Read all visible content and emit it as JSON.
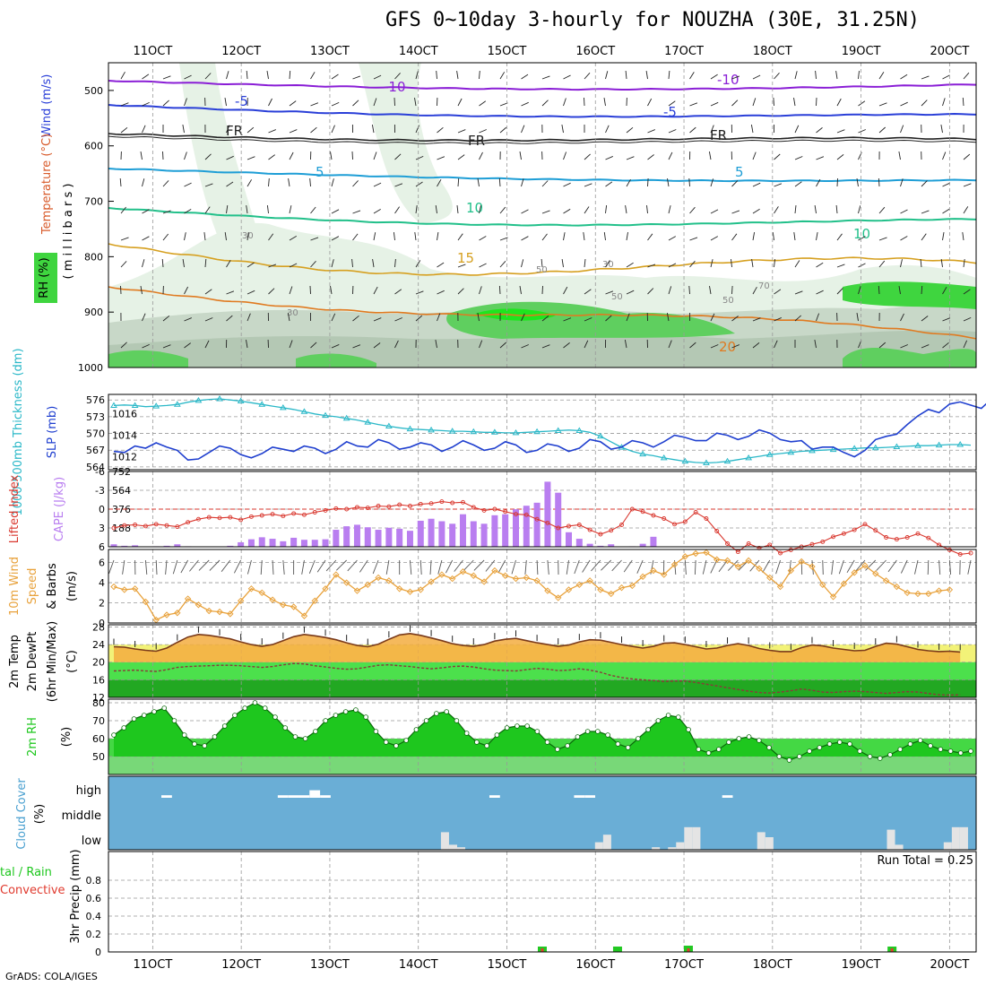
{
  "title": "GFS 0~10day 3-hourly for NOUZHA (30E, 31.25N)",
  "footer": "GrADS: COLA/IGES",
  "run_total": "Run Total = 0.25",
  "x_ticks": [
    "11OCT",
    "12OCT",
    "13OCT",
    "14OCT",
    "15OCT",
    "16OCT",
    "17OCT",
    "18OCT",
    "19OCT",
    "20OCT"
  ],
  "x_ticks_bottom": [
    "11OCT",
    "12OCT",
    "13OCT",
    "14OCT",
    "15OCT",
    "16OCT",
    "17OCT",
    "18OCT",
    "19OCT",
    "20OCT"
  ],
  "colors": {
    "background": "#ffffff",
    "cloud_bg": "#6aaed6",
    "cape": "#b97ef0",
    "lifted": "#d9372e",
    "slp": "#1f3fcf",
    "thickness": "#2bb8c8",
    "wind_speed": "#e8a23c",
    "temp_fill": "#f3ad3f",
    "rh_fill": "#1ec71e",
    "rain": "#22c822",
    "convective": "#e03a2e"
  },
  "panels": {
    "upper": {
      "ylabel_wind": "Wind (m/s)",
      "ylabel_temp": "Temperature (°C)",
      "ylabel_rh": "RH (%)",
      "ylabel_pressure": "( m i l l i b a r s )",
      "y_ticks": [
        "500",
        "600",
        "700",
        "800",
        "900",
        "1000"
      ],
      "contour_labels": [
        "-10",
        "-10",
        "-5",
        "-5",
        "FR",
        "FR",
        "FR",
        "5",
        "5",
        "10",
        "10",
        "15",
        "20",
        "30",
        "30",
        "50",
        "50",
        "50",
        "70",
        "30"
      ]
    },
    "slp": {
      "ylabel_thickness": "1000-500mb Thickness (dm)",
      "ylabel_slp": "SLP (mb)",
      "left_ticks": [
        "576",
        "573",
        "570",
        "567",
        "564"
      ],
      "right_ticks": [
        "1016",
        "1014",
        "1012"
      ]
    },
    "cape": {
      "ylabel_li": "Lifted Index",
      "ylabel_cape": "CAPE (J/kg)",
      "left_ticks": [
        "-6",
        "-3",
        "0",
        "3",
        "6"
      ],
      "right_ticks": [
        "752",
        "564",
        "376",
        "188"
      ]
    },
    "wind": {
      "ylabel_a": "10m Wind",
      "ylabel_b": "Speed",
      "ylabel_c": "& Barbs",
      "ylabel_unit": "(m/s)",
      "y_ticks": [
        "6",
        "4",
        "2",
        "0"
      ]
    },
    "temp": {
      "ylabel_a": "2m Temp",
      "ylabel_b": "2m DewPt",
      "ylabel_c": "(6hr Min/Max)",
      "ylabel_unit": "(°C)",
      "y_ticks": [
        "28",
        "24",
        "20",
        "16",
        "12"
      ]
    },
    "rh": {
      "ylabel": "2m RH",
      "ylabel_unit": "(%)",
      "y_ticks": [
        "80",
        "70",
        "60",
        "50"
      ]
    },
    "cloud": {
      "ylabel": "Cloud Cover",
      "ylabel_unit": "(%)",
      "levels": [
        "high",
        "middle",
        "low"
      ]
    },
    "precip": {
      "ylabel_a": "tal / Rain",
      "ylabel_b": "Convective",
      "ylabel_c": "3hr Precip (mm)",
      "y_ticks": [
        "0.8",
        "0.6",
        "0.4",
        "0.2",
        "0"
      ]
    }
  },
  "chart_data": [
    {
      "type": "line",
      "title": "1000-500mb Thickness / SLP",
      "series": [
        {
          "name": "1000-500mb Thickness (dm)",
          "y": [
            575.0,
            575.1,
            575.0,
            574.8,
            574.9,
            575.0,
            575.2,
            575.6,
            575.9,
            576.1,
            576.2,
            576.0,
            575.8,
            575.5,
            575.2,
            574.9,
            574.6,
            574.3,
            573.9,
            573.5,
            573.2,
            573.0,
            572.7,
            572.4,
            572.0,
            571.6,
            571.3,
            571.0,
            570.8,
            570.7,
            570.6,
            570.5,
            570.4,
            570.4,
            570.3,
            570.2,
            570.2,
            570.1,
            570.1,
            570.2,
            570.3,
            570.4,
            570.5,
            570.6,
            570.5,
            570.2,
            569.5,
            568.5,
            567.5,
            566.8,
            566.3,
            566.0,
            565.6,
            565.3,
            565.0,
            564.8,
            564.7,
            564.8,
            565.0,
            565.3,
            565.6,
            565.9,
            566.2,
            566.4,
            566.6,
            566.8,
            566.9,
            567.0,
            567.1,
            567.2,
            567.3,
            567.4,
            567.4,
            567.5,
            567.6,
            567.7,
            567.8,
            567.8,
            567.9,
            568.0,
            568.0,
            567.9
          ]
        },
        {
          "name": "SLP (mb)",
          "y": [
            1012.5,
            1012.4,
            1013.0,
            1012.8,
            1013.3,
            1012.9,
            1012.6,
            1011.7,
            1011.8,
            1012.4,
            1013.0,
            1012.8,
            1012.2,
            1011.9,
            1012.3,
            1012.9,
            1012.7,
            1012.5,
            1013.0,
            1012.8,
            1012.3,
            1012.7,
            1013.4,
            1013.0,
            1012.9,
            1013.6,
            1013.3,
            1012.7,
            1012.9,
            1013.3,
            1013.1,
            1012.5,
            1012.9,
            1013.5,
            1013.1,
            1012.6,
            1012.8,
            1013.4,
            1013.1,
            1012.4,
            1012.6,
            1013.2,
            1013.0,
            1012.5,
            1012.8,
            1013.6,
            1013.4,
            1012.7,
            1012.9,
            1013.5,
            1013.3,
            1012.9,
            1013.4,
            1014.0,
            1013.8,
            1013.5,
            1013.5,
            1014.2,
            1014.0,
            1013.6,
            1013.9,
            1014.5,
            1014.2,
            1013.6,
            1013.4,
            1013.5,
            1012.7,
            1012.9,
            1012.9,
            1012.4,
            1012.0,
            1012.6,
            1013.6,
            1013.9,
            1014.1,
            1015.0,
            1015.8,
            1016.4,
            1016.1,
            1016.9,
            1017.1,
            1016.8,
            1016.5,
            1017.4
          ]
        }
      ]
    },
    {
      "type": "bar",
      "title": "CAPE / Lifted Index",
      "series": [
        {
          "name": "CAPE (J/kg)",
          "values": [
            25,
            10,
            15,
            0,
            5,
            10,
            25,
            5,
            0,
            0,
            0,
            10,
            45,
            75,
            95,
            80,
            55,
            90,
            70,
            70,
            75,
            170,
            205,
            220,
            195,
            170,
            190,
            180,
            160,
            260,
            280,
            255,
            230,
            325,
            255,
            230,
            315,
            325,
            375,
            410,
            440,
            650,
            540,
            145,
            80,
            30,
            10,
            25,
            0,
            5,
            30,
            100,
            0,
            0,
            0,
            0,
            0,
            0,
            0,
            0,
            0,
            0,
            0,
            0,
            0,
            0,
            0,
            0,
            0,
            0,
            0,
            0,
            0,
            0,
            5,
            0,
            0,
            0,
            0,
            0,
            0,
            0
          ]
        },
        {
          "name": "Lifted Index",
          "values": [
            3.0,
            2.6,
            2.5,
            2.7,
            2.4,
            2.6,
            2.8,
            2.1,
            1.6,
            1.3,
            1.4,
            1.3,
            1.7,
            1.2,
            1.0,
            0.8,
            1.1,
            0.7,
            0.9,
            0.5,
            0.2,
            -0.1,
            0.0,
            -0.3,
            -0.2,
            -0.5,
            -0.4,
            -0.7,
            -0.5,
            -0.8,
            -0.9,
            -1.2,
            -1.0,
            -1.1,
            -0.3,
            0.2,
            0.0,
            0.4,
            0.8,
            0.9,
            1.6,
            2.2,
            3.0,
            2.7,
            2.5,
            3.3,
            4.0,
            3.4,
            2.5,
            0.0,
            0.4,
            1.0,
            1.5,
            2.4,
            2.0,
            0.5,
            1.5,
            3.5,
            5.5,
            6.8,
            5.5,
            6.2,
            5.7,
            7.0,
            6.5,
            6.0,
            5.6,
            5.2,
            4.4,
            3.9,
            3.3,
            2.4,
            3.4,
            4.5,
            4.8,
            4.5,
            3.9,
            4.6,
            5.7,
            6.5,
            7.2,
            7.0
          ]
        }
      ]
    },
    {
      "type": "line",
      "title": "10m Wind Speed",
      "series": [
        {
          "name": "Speed (m/s)",
          "y": [
            3.6,
            3.3,
            3.4,
            2.1,
            0.3,
            0.8,
            1.0,
            2.4,
            1.8,
            1.2,
            1.1,
            0.9,
            2.2,
            3.4,
            3.0,
            2.3,
            1.8,
            1.6,
            0.7,
            2.2,
            3.4,
            4.8,
            4.0,
            3.2,
            3.8,
            4.5,
            4.2,
            3.4,
            3.1,
            3.3,
            4.1,
            4.8,
            4.4,
            5.1,
            4.7,
            4.1,
            5.2,
            4.7,
            4.4,
            4.5,
            4.2,
            3.2,
            2.5,
            3.3,
            3.8,
            4.2,
            3.3,
            2.9,
            3.5,
            3.7,
            4.6,
            5.2,
            4.8,
            5.8,
            6.6,
            6.9,
            7.0,
            6.3,
            6.2,
            5.6,
            6.2,
            5.4,
            4.5,
            3.6,
            5.2,
            6.1,
            5.6,
            3.8,
            2.6,
            3.9,
            5.0,
            5.7,
            4.9,
            4.2,
            3.6,
            3.0,
            2.9,
            2.9,
            3.2,
            3.3
          ]
        }
      ]
    },
    {
      "type": "area",
      "title": "2m Temp / DewPt",
      "series": [
        {
          "name": "2m Temp (°C)",
          "y": [
            23.5,
            23.4,
            23.0,
            22.7,
            22.5,
            23.2,
            24.5,
            25.7,
            26.3,
            26.1,
            25.7,
            25.3,
            24.6,
            24.0,
            23.6,
            24.0,
            24.9,
            25.8,
            26.3,
            26.0,
            25.6,
            25.1,
            24.4,
            23.8,
            23.5,
            24.1,
            25.2,
            26.2,
            26.5,
            26.1,
            25.5,
            24.9,
            24.2,
            23.8,
            23.6,
            24.0,
            24.8,
            25.2,
            25.4,
            24.9,
            24.4,
            24.0,
            23.6,
            23.9,
            24.6,
            25.1,
            25.0,
            24.5,
            24.0,
            23.6,
            23.2,
            23.6,
            24.3,
            24.4,
            24.0,
            23.5,
            23.0,
            23.2,
            23.8,
            24.2,
            23.8,
            23.1,
            22.7,
            22.4,
            22.4,
            23.3,
            23.9,
            23.7,
            23.2,
            22.9,
            22.6,
            22.7,
            23.6,
            24.3,
            24.1,
            23.5,
            22.9,
            22.6,
            22.4,
            22.5,
            22.3
          ]
        },
        {
          "name": "2m DewPt (°C)",
          "y": [
            18.0,
            18.1,
            18.2,
            18.0,
            17.9,
            18.3,
            18.8,
            19.0,
            19.1,
            19.2,
            19.3,
            19.3,
            19.2,
            19.0,
            18.8,
            19.0,
            19.4,
            19.7,
            19.6,
            19.2,
            18.9,
            18.6,
            18.4,
            18.5,
            18.9,
            19.3,
            19.4,
            19.2,
            19.0,
            18.7,
            18.5,
            18.7,
            19.0,
            19.1,
            18.9,
            18.5,
            18.2,
            18.1,
            18.0,
            18.3,
            18.6,
            18.4,
            18.1,
            18.2,
            18.5,
            18.2,
            17.7,
            17.0,
            16.5,
            16.2,
            16.0,
            15.8,
            15.6,
            15.7,
            15.7,
            15.4,
            15.0,
            14.6,
            14.2,
            13.8,
            13.4,
            13.1,
            13.0,
            13.2,
            13.5,
            13.9,
            13.6,
            13.2,
            13.1,
            13.3,
            13.4,
            13.3,
            13.1,
            12.9,
            13.1,
            13.3,
            13.2,
            12.9,
            12.6,
            12.5,
            12.6
          ]
        }
      ]
    },
    {
      "type": "area",
      "title": "2m RH",
      "series": [
        {
          "name": "2m RH (%)",
          "y": [
            62,
            66,
            71,
            73,
            75,
            77,
            70,
            62,
            57,
            56,
            61,
            67,
            73,
            77,
            80,
            77,
            72,
            66,
            61,
            60,
            64,
            70,
            73,
            75,
            76,
            72,
            64,
            58,
            56,
            59,
            65,
            70,
            74,
            75,
            70,
            63,
            58,
            56,
            62,
            66,
            67,
            67,
            64,
            58,
            54,
            56,
            61,
            64,
            64,
            62,
            57,
            55,
            60,
            65,
            70,
            73,
            72,
            65,
            54,
            52,
            54,
            58,
            60,
            61,
            59,
            55,
            50,
            48,
            50,
            53,
            55,
            57,
            58,
            57,
            53,
            50,
            49,
            51,
            54,
            57,
            59,
            56,
            54,
            53,
            52,
            53
          ]
        }
      ]
    },
    {
      "type": "bar",
      "title": "Cloud Cover",
      "series": [
        {
          "name": "high (%)",
          "values": [
            0,
            0,
            0,
            0,
            0,
            10,
            0,
            0,
            0,
            0,
            0,
            0,
            0,
            0,
            0,
            0,
            10,
            10,
            10,
            30,
            10,
            0,
            0,
            0,
            0,
            0,
            0,
            0,
            0,
            0,
            0,
            0,
            0,
            0,
            0,
            0,
            10,
            0,
            0,
            0,
            0,
            0,
            0,
            0,
            10,
            10,
            0,
            0,
            0,
            0,
            0,
            0,
            0,
            0,
            0,
            0,
            0,
            0,
            10,
            0,
            0,
            0,
            0,
            0,
            0,
            0,
            0,
            0,
            0,
            0,
            0,
            0,
            0,
            0,
            0,
            0,
            0,
            0,
            0,
            0,
            0,
            0
          ]
        },
        {
          "name": "low (%)",
          "values": [
            0,
            0,
            0,
            0,
            0,
            0,
            0,
            0,
            0,
            0,
            0,
            0,
            0,
            0,
            0,
            0,
            0,
            0,
            0,
            0,
            0,
            0,
            0,
            0,
            0,
            0,
            0,
            0,
            0,
            0,
            0,
            0,
            0,
            0,
            0,
            0,
            0,
            0,
            0,
            0,
            0,
            70,
            20,
            10,
            0,
            0,
            0,
            0,
            0,
            0,
            0,
            0,
            0,
            0,
            0,
            0,
            0,
            0,
            0,
            0,
            30,
            60,
            0,
            0,
            0,
            0,
            0,
            10,
            0,
            10,
            30,
            90,
            90,
            0,
            0,
            0,
            0,
            0,
            0,
            0,
            70,
            50,
            0,
            0,
            0,
            0,
            0,
            0,
            0,
            0,
            0,
            0,
            0,
            0,
            0,
            0,
            80,
            20,
            0,
            0,
            0,
            0,
            0,
            30,
            90,
            90,
            0
          ]
        }
      ]
    },
    {
      "type": "bar",
      "title": "3hr Precip (mm)",
      "series": [
        {
          "name": "Total / Rain",
          "x": [
            15.4,
            16.25,
            17.05,
            19.35
          ],
          "values": [
            0.06,
            0.06,
            0.07,
            0.06
          ]
        },
        {
          "name": "Convective",
          "x": [
            15.4,
            17.05,
            19.35
          ],
          "values": [
            0.04,
            0.04,
            0.04
          ]
        }
      ]
    }
  ]
}
